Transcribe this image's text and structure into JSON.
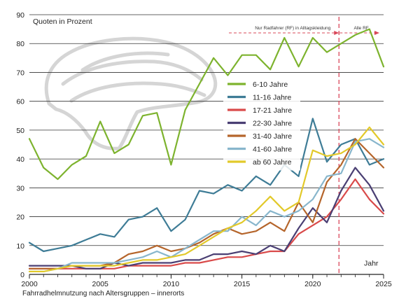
{
  "chart_data": {
    "type": "line",
    "title": "Quoten in Prozent",
    "xlabel": "Jahr",
    "ylabel": "",
    "caption": "Fahrradhelmnutzung nach Altersgruppen – innerorts",
    "xlim": [
      2000,
      2025
    ],
    "ylim": [
      0,
      90
    ],
    "yticks": [
      0,
      10,
      20,
      30,
      40,
      50,
      60,
      70,
      80,
      90
    ],
    "xticks": [
      2000,
      2005,
      2010,
      2015,
      2020,
      2025
    ],
    "grid": "horizontal",
    "legend_position": "center",
    "annotation": {
      "vline_x": 2021.85,
      "left_label": "Nur Radfahrer (RF) in Alltagskleidung",
      "right_label": "Alle RF"
    },
    "x": [
      2000,
      2001,
      2002,
      2003,
      2004,
      2005,
      2006,
      2007,
      2008,
      2009,
      2010,
      2011,
      2012,
      2013,
      2014,
      2015,
      2016,
      2017,
      2018,
      2019,
      2020,
      2021,
      2022,
      2023,
      2024,
      2025
    ],
    "series": [
      {
        "name": "6-10 Jahre",
        "color": "#7db32e",
        "values": [
          47,
          37,
          33,
          38,
          41,
          53,
          42,
          45,
          55,
          56,
          38,
          57,
          66,
          75,
          69,
          76,
          76,
          71,
          82,
          72,
          82,
          77,
          80,
          83,
          85,
          72
        ]
      },
      {
        "name": "11-16 Jahre",
        "color": "#3e7c96",
        "values": [
          11,
          8,
          9,
          10,
          12,
          14,
          13,
          19,
          20,
          23,
          15,
          19,
          29,
          28,
          31,
          29,
          34,
          31,
          38,
          34,
          54,
          39,
          45,
          47,
          38,
          40
        ]
      },
      {
        "name": "17-21 Jahre",
        "color": "#d94a4a",
        "values": [
          2,
          2,
          2,
          2,
          2,
          2,
          2,
          3,
          3,
          3,
          3,
          4,
          4,
          5,
          6,
          6,
          7,
          8,
          8,
          14,
          17,
          20,
          26,
          33,
          26,
          21
        ]
      },
      {
        "name": "22-30 Jahre",
        "color": "#4a3f73",
        "values": [
          3,
          3,
          3,
          3,
          2,
          2,
          4,
          3,
          4,
          4,
          4,
          5,
          5,
          7,
          7,
          8,
          7,
          10,
          8,
          16,
          23,
          18,
          29,
          37,
          31,
          22
        ]
      },
      {
        "name": "31-40 Jahre",
        "color": "#b5652b",
        "values": [
          2,
          2,
          2,
          3,
          3,
          3,
          4,
          7,
          8,
          10,
          8,
          9,
          11,
          14,
          16,
          14,
          15,
          18,
          15,
          25,
          18,
          32,
          38,
          47,
          42,
          37
        ]
      },
      {
        "name": "41-60 Jahre",
        "color": "#88b6cc",
        "values": [
          1,
          1,
          2,
          4,
          4,
          4,
          4,
          5,
          6,
          8,
          6,
          9,
          12,
          15,
          15,
          20,
          17,
          22,
          20,
          22,
          26,
          34,
          35,
          46,
          47,
          44
        ]
      },
      {
        "name": "ab 60 Jahre",
        "color": "#e2c92a",
        "values": [
          1,
          1,
          2,
          3,
          3,
          3,
          3,
          4,
          5,
          5,
          6,
          7,
          10,
          13,
          16,
          18,
          22,
          27,
          22,
          25,
          43,
          41,
          42,
          45,
          51,
          45
        ]
      }
    ]
  }
}
